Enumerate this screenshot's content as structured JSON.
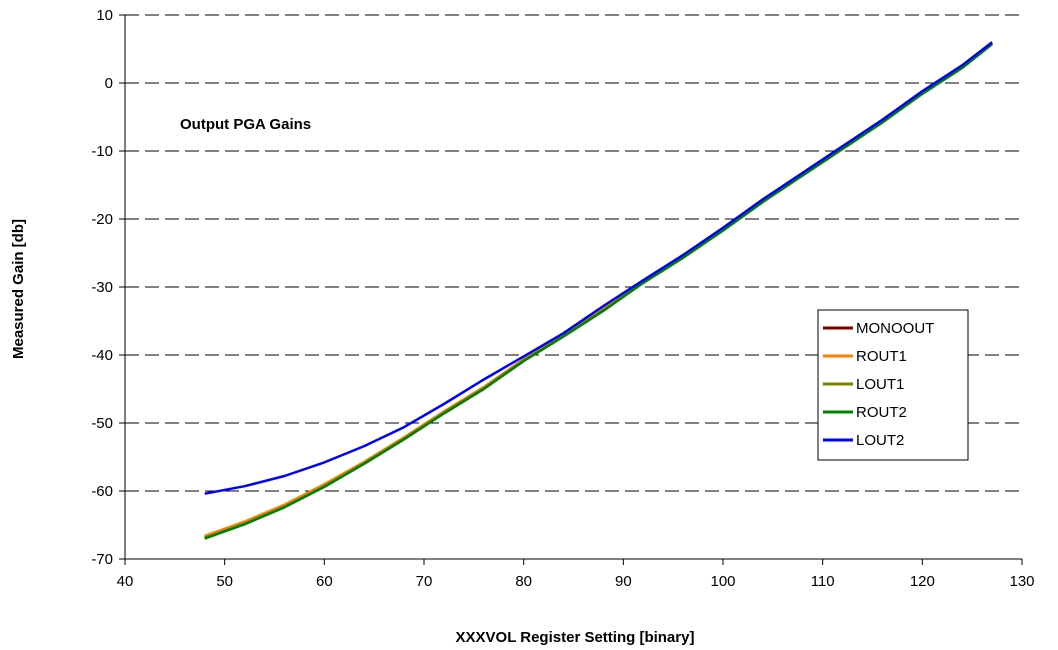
{
  "chart_data": {
    "type": "line",
    "title": "",
    "annotation": "Output PGA Gains",
    "xlabel": "XXXVOL Register Setting [binary]",
    "ylabel": "Measured Gain [db]",
    "xlim": [
      40,
      130
    ],
    "ylim": [
      -70,
      10
    ],
    "xticks": [
      40,
      50,
      60,
      70,
      80,
      90,
      100,
      110,
      120,
      130
    ],
    "yticks": [
      10,
      0,
      -10,
      -20,
      -30,
      -40,
      -50,
      -60,
      -70
    ],
    "grid": "horizontal dashed",
    "legend_position": "right",
    "series": [
      {
        "name": "MONOOUT",
        "color": "#800000",
        "x": [
          48,
          52,
          56,
          60,
          64,
          68,
          72,
          76,
          80,
          84,
          88,
          92,
          96,
          100,
          104,
          108,
          112,
          116,
          120,
          124,
          127
        ],
        "y": [
          -66.8,
          -64.7,
          -62.2,
          -59.2,
          -55.8,
          -52.2,
          -48.4,
          -44.8,
          -40.7,
          -37.1,
          -33.3,
          -29.2,
          -25.5,
          -21.5,
          -17.3,
          -13.4,
          -9.5,
          -5.6,
          -1.4,
          2.4,
          5.9
        ]
      },
      {
        "name": "ROUT1",
        "color": "#ff8000",
        "x": [
          48,
          52,
          56,
          60,
          64,
          68,
          72,
          76,
          80,
          84,
          88,
          92,
          96,
          100,
          104,
          108,
          112,
          116,
          120,
          124,
          127
        ],
        "y": [
          -66.6,
          -64.5,
          -62.0,
          -59.0,
          -55.7,
          -52.1,
          -48.3,
          -44.7,
          -40.6,
          -37.0,
          -33.2,
          -29.1,
          -25.4,
          -21.4,
          -17.2,
          -13.3,
          -9.4,
          -5.5,
          -1.3,
          2.5,
          6.0
        ]
      },
      {
        "name": "LOUT1",
        "color": "#808000",
        "x": [
          48,
          52,
          56,
          60,
          64,
          68,
          72,
          76,
          80,
          84,
          88,
          92,
          96,
          100,
          104,
          108,
          112,
          116,
          120,
          124,
          127
        ],
        "y": [
          -66.9,
          -64.8,
          -62.3,
          -59.3,
          -55.9,
          -52.3,
          -48.5,
          -44.9,
          -40.8,
          -37.2,
          -33.4,
          -29.3,
          -25.6,
          -21.6,
          -17.4,
          -13.5,
          -9.6,
          -5.7,
          -1.5,
          2.3,
          5.8
        ]
      },
      {
        "name": "ROUT2",
        "color": "#008000",
        "x": [
          48,
          52,
          56,
          60,
          64,
          68,
          72,
          76,
          80,
          84,
          88,
          92,
          96,
          100,
          104,
          108,
          112,
          116,
          120,
          124,
          127
        ],
        "y": [
          -67.0,
          -64.9,
          -62.4,
          -59.4,
          -56.0,
          -52.4,
          -48.6,
          -45.0,
          -40.9,
          -37.3,
          -33.5,
          -29.4,
          -25.7,
          -21.7,
          -17.5,
          -13.6,
          -9.7,
          -5.8,
          -1.6,
          2.2,
          5.7
        ]
      },
      {
        "name": "LOUT2",
        "color": "#0000ff",
        "x": [
          48,
          52,
          56,
          60,
          64,
          68,
          72,
          76,
          80,
          84,
          88,
          92,
          96,
          100,
          104,
          108,
          112,
          116,
          120,
          124,
          127
        ],
        "y": [
          -60.4,
          -59.3,
          -57.8,
          -55.8,
          -53.4,
          -50.6,
          -47.2,
          -43.6,
          -40.2,
          -36.8,
          -32.8,
          -29.0,
          -25.3,
          -21.3,
          -17.1,
          -13.2,
          -9.3,
          -5.4,
          -1.2,
          2.6,
          6.0
        ]
      }
    ]
  }
}
